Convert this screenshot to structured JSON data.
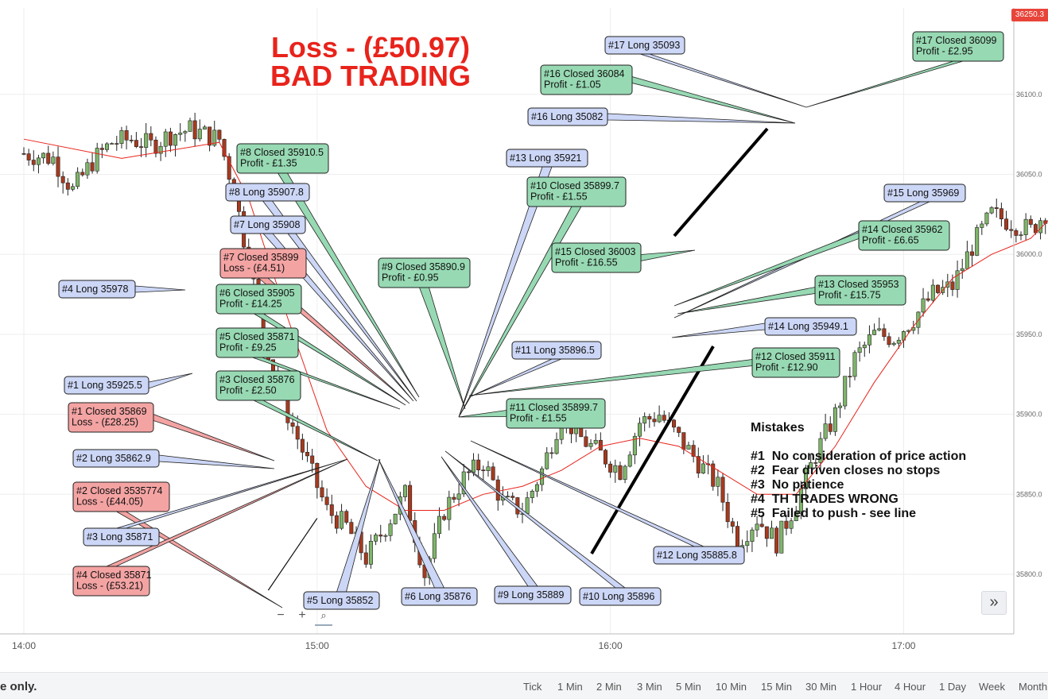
{
  "header": {
    "title_line1": "Loss - (£50.97)",
    "title_line2": "BAD TRADING",
    "current_price": "36250.3"
  },
  "colors": {
    "up": "#7fb56a",
    "down": "#a63a1e",
    "ma": "#e8231b",
    "long_tag": "#ccd6f6",
    "profit_tag": "#97d9b3",
    "loss_tag": "#f4a3a3"
  },
  "chart_data": {
    "type": "candlestick",
    "xlabel": "",
    "ylabel": "",
    "x_ticks": [
      "14:00",
      "15:00",
      "16:00",
      "17:00"
    ],
    "y_ticks": [
      "35800.0",
      "35850.0",
      "35900.0",
      "35950.0",
      "36000.0",
      "36050.0",
      "36100.0"
    ],
    "ylim": [
      35775,
      36310
    ],
    "candle_interval": "1 Min",
    "close_path": [
      [
        0,
        36063
      ],
      [
        6,
        36060
      ],
      [
        10,
        36040
      ],
      [
        14,
        36058
      ],
      [
        18,
        36070
      ],
      [
        22,
        36072
      ],
      [
        26,
        36068
      ],
      [
        30,
        36075
      ],
      [
        34,
        36078
      ],
      [
        40,
        36072
      ],
      [
        43,
        36040
      ],
      [
        46,
        35995
      ],
      [
        50,
        35940
      ],
      [
        54,
        35900
      ],
      [
        58,
        35870
      ],
      [
        62,
        35840
      ],
      [
        66,
        35830
      ],
      [
        70,
        35810
      ],
      [
        74,
        35830
      ],
      [
        78,
        35850
      ],
      [
        82,
        35800
      ],
      [
        86,
        35840
      ],
      [
        90,
        35860
      ],
      [
        94,
        35870
      ],
      [
        98,
        35845
      ],
      [
        102,
        35840
      ],
      [
        106,
        35865
      ],
      [
        110,
        35900
      ],
      [
        114,
        35885
      ],
      [
        118,
        35875
      ],
      [
        122,
        35865
      ],
      [
        126,
        35895
      ],
      [
        130,
        35900
      ],
      [
        134,
        35885
      ],
      [
        138,
        35870
      ],
      [
        142,
        35855
      ],
      [
        146,
        35820
      ],
      [
        150,
        35835
      ],
      [
        154,
        35820
      ],
      [
        158,
        35845
      ],
      [
        162,
        35875
      ],
      [
        166,
        35900
      ],
      [
        170,
        35935
      ],
      [
        174,
        35950
      ],
      [
        178,
        35948
      ],
      [
        182,
        35960
      ],
      [
        186,
        35975
      ],
      [
        190,
        35980
      ],
      [
        194,
        36005
      ],
      [
        198,
        36025
      ],
      [
        202,
        36020
      ],
      [
        206,
        36015
      ],
      [
        210,
        36030
      ],
      [
        214,
        36055
      ],
      [
        218,
        36080
      ],
      [
        222,
        36140
      ],
      [
        226,
        36120
      ],
      [
        230,
        36090
      ],
      [
        234,
        36075
      ],
      [
        238,
        36080
      ],
      [
        242,
        36075
      ],
      [
        246,
        36085
      ],
      [
        250,
        36090
      ],
      [
        254,
        36095
      ],
      [
        258,
        36100
      ],
      [
        262,
        36105
      ],
      [
        266,
        36110
      ],
      [
        270,
        36108
      ],
      [
        274,
        36098
      ]
    ],
    "moving_average": [
      [
        0,
        36072
      ],
      [
        20,
        36060
      ],
      [
        40,
        36070
      ],
      [
        46,
        36035
      ],
      [
        54,
        35960
      ],
      [
        62,
        35890
      ],
      [
        70,
        35855
      ],
      [
        78,
        35840
      ],
      [
        86,
        35840
      ],
      [
        94,
        35850
      ],
      [
        102,
        35855
      ],
      [
        110,
        35865
      ],
      [
        118,
        35880
      ],
      [
        126,
        35885
      ],
      [
        134,
        35880
      ],
      [
        142,
        35865
      ],
      [
        150,
        35850
      ],
      [
        158,
        35850
      ],
      [
        166,
        35880
      ],
      [
        174,
        35920
      ],
      [
        182,
        35955
      ],
      [
        190,
        35985
      ],
      [
        198,
        36000
      ],
      [
        206,
        36010
      ],
      [
        214,
        36035
      ],
      [
        222,
        36070
      ],
      [
        230,
        36080
      ],
      [
        242,
        36082
      ],
      [
        254,
        36088
      ],
      [
        266,
        36095
      ],
      [
        274,
        36096
      ]
    ],
    "trendlines": [
      [
        "14:50",
        "35790",
        "15:00",
        "35835"
      ]
    ],
    "series": []
  },
  "annotations": [
    {
      "type": "long",
      "lines": [
        "#17 Long 35093"
      ]
    },
    {
      "type": "profit",
      "lines": [
        "#17 Closed 36099",
        "Profit - £2.95"
      ]
    },
    {
      "type": "profit",
      "lines": [
        "#16 Closed 36084",
        "Profit - £1.05"
      ]
    },
    {
      "type": "long",
      "lines": [
        "#16 Long 35082"
      ]
    },
    {
      "type": "profit",
      "lines": [
        "#8 Closed 35910.5",
        "Profit - £1.35"
      ]
    },
    {
      "type": "long",
      "lines": [
        "#13 Long 35921"
      ]
    },
    {
      "type": "long",
      "lines": [
        "#8 Long 35907.8"
      ]
    },
    {
      "type": "profit",
      "lines": [
        "#10 Closed 35899.7",
        "Profit - £1.55"
      ]
    },
    {
      "type": "long",
      "lines": [
        "#15 Long 35969"
      ]
    },
    {
      "type": "long",
      "lines": [
        "#7 Long 35908"
      ]
    },
    {
      "type": "profit",
      "lines": [
        "#14 Closed 35962",
        "Profit - £6.65"
      ]
    },
    {
      "type": "profit",
      "lines": [
        "#15 Closed 36003",
        "Profit - £16.55"
      ]
    },
    {
      "type": "loss",
      "lines": [
        "#7 Closed 35899",
        "Loss - (£4.51)"
      ]
    },
    {
      "type": "profit",
      "lines": [
        "#9 Closed 35890.9",
        "Profit - £0.95"
      ]
    },
    {
      "type": "long",
      "lines": [
        "#4 Long 35978"
      ]
    },
    {
      "type": "profit",
      "lines": [
        "#13 Closed 35953",
        "Profit - £15.75"
      ]
    },
    {
      "type": "profit",
      "lines": [
        "#6 Closed 35905",
        "Profit - £14.25"
      ]
    },
    {
      "type": "long",
      "lines": [
        "#14 Long 35949.1"
      ]
    },
    {
      "type": "profit",
      "lines": [
        "#5 Closed 35871",
        "Profit - £9.25"
      ]
    },
    {
      "type": "long",
      "lines": [
        "#11 Long 35896.5"
      ]
    },
    {
      "type": "profit",
      "lines": [
        "#12 Closed 35911",
        "Profit - £12.90"
      ]
    },
    {
      "type": "profit",
      "lines": [
        "#3 Closed 35876",
        "Profit - £2.50"
      ]
    },
    {
      "type": "long",
      "lines": [
        "#1 Long 35925.5"
      ]
    },
    {
      "type": "profit",
      "lines": [
        "#11 Closed 35899.7",
        "Profit - £1.55"
      ]
    },
    {
      "type": "loss",
      "lines": [
        "#1 Closed 35869",
        "Loss - (£28.25)"
      ]
    },
    {
      "type": "long",
      "lines": [
        "#2 Long 35862.9"
      ]
    },
    {
      "type": "loss",
      "lines": [
        "#2 Closed 3535774",
        "Loss - (£44.05)"
      ]
    },
    {
      "type": "long",
      "lines": [
        "#3 Long 35871"
      ]
    },
    {
      "type": "long",
      "lines": [
        "#12 Long 35885.8"
      ]
    },
    {
      "type": "loss",
      "lines": [
        "#4 Closed 35871",
        "Loss - (£53.21)"
      ]
    },
    {
      "type": "long",
      "lines": [
        "#5 Long 35852"
      ]
    },
    {
      "type": "long",
      "lines": [
        "#6 Long 35876"
      ]
    },
    {
      "type": "long",
      "lines": [
        "#9 Long 35889"
      ]
    },
    {
      "type": "long",
      "lines": [
        "#10 Long 35896"
      ]
    }
  ],
  "mistakes": {
    "title": "Mistakes",
    "items": [
      "#1  No consideration of price action",
      "#2  Fear driven closes no stops",
      "#3  No patience",
      "#4  TH TRADES WRONG",
      "#5  Failed to push - see line"
    ]
  },
  "footer": {
    "disclaimer": "e only.",
    "timeframes": [
      "Tick",
      "1 Min",
      "2 Min",
      "3 Min",
      "5 Min",
      "10 Min",
      "15 Min",
      "30 Min",
      "1 Hour",
      "4 Hour",
      "1 Day",
      "Week",
      "Month"
    ]
  },
  "controls": {
    "expand_icon": "double-chevron-right-icon",
    "zoom_out_icon": "minus-icon",
    "zoom_in_icon": "plus-icon",
    "zoom_reset_icon": "magnifier-icon"
  }
}
